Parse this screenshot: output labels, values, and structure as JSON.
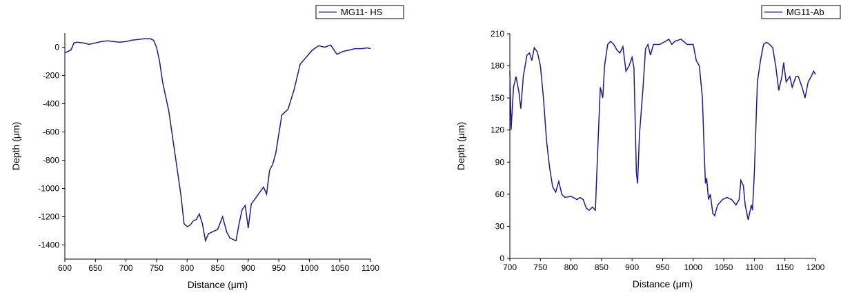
{
  "chart_data": [
    {
      "type": "line",
      "xlabel": "Distance (μm)",
      "ylabel": "Depth (μm)",
      "xlim": [
        600,
        1100
      ],
      "xticks": [
        600,
        650,
        700,
        750,
        800,
        850,
        900,
        950,
        1000,
        1050,
        1100
      ],
      "ylim": [
        -1500,
        100
      ],
      "yticks": [
        0,
        -200,
        -400,
        -600,
        -800,
        -1000,
        -1200,
        -1400
      ],
      "legend": "top-right",
      "series": [
        {
          "name": "MG11- HS",
          "color": "#1a1a8c",
          "x": [
            600,
            610,
            615,
            620,
            630,
            640,
            650,
            660,
            670,
            680,
            690,
            700,
            710,
            720,
            730,
            740,
            745,
            750,
            755,
            760,
            770,
            780,
            790,
            795,
            800,
            805,
            810,
            815,
            820,
            825,
            830,
            835,
            840,
            850,
            858,
            865,
            870,
            880,
            885,
            890,
            895,
            900,
            905,
            915,
            925,
            930,
            935,
            940,
            945,
            955,
            965,
            975,
            985,
            995,
            1005,
            1015,
            1025,
            1035,
            1045,
            1055,
            1065,
            1075,
            1085,
            1095,
            1100
          ],
          "values": [
            -40,
            -20,
            30,
            35,
            30,
            20,
            30,
            40,
            45,
            40,
            35,
            40,
            50,
            55,
            60,
            60,
            50,
            0,
            -100,
            -250,
            -450,
            -750,
            -1050,
            -1250,
            -1270,
            -1260,
            -1230,
            -1220,
            -1180,
            -1250,
            -1370,
            -1320,
            -1310,
            -1290,
            -1200,
            -1310,
            -1350,
            -1370,
            -1250,
            -1150,
            -1120,
            -1280,
            -1110,
            -1050,
            -990,
            -1040,
            -870,
            -830,
            -750,
            -480,
            -440,
            -300,
            -120,
            -70,
            -20,
            10,
            0,
            15,
            -50,
            -30,
            -20,
            -10,
            -10,
            -5,
            -10
          ]
        }
      ]
    },
    {
      "type": "line",
      "xlabel": "Distance (μm)",
      "ylabel": "Depth (μm)",
      "xlim": [
        700,
        1200
      ],
      "xticks": [
        700,
        750,
        800,
        850,
        900,
        950,
        1000,
        1050,
        1100,
        1150,
        1200
      ],
      "ylim": [
        0,
        210
      ],
      "yticks": [
        0,
        30,
        60,
        90,
        120,
        150,
        180,
        210
      ],
      "legend": "top-right",
      "series": [
        {
          "name": "MG11-Ab",
          "color": "#1a1a8c",
          "x": [
            700,
            702,
            706,
            710,
            715,
            718,
            722,
            728,
            732,
            736,
            740,
            745,
            750,
            755,
            760,
            765,
            770,
            775,
            780,
            785,
            790,
            800,
            810,
            815,
            820,
            825,
            830,
            835,
            840,
            843,
            848,
            852,
            855,
            860,
            865,
            870,
            875,
            880,
            885,
            890,
            895,
            900,
            903,
            907,
            909,
            912,
            918,
            922,
            926,
            930,
            935,
            945,
            955,
            960,
            965,
            970,
            980,
            990,
            1000,
            1005,
            1010,
            1015,
            1018,
            1020,
            1022,
            1025,
            1028,
            1032,
            1035,
            1040,
            1048,
            1055,
            1063,
            1070,
            1075,
            1078,
            1082,
            1085,
            1090,
            1095,
            1097,
            1100,
            1105,
            1110,
            1115,
            1120,
            1125,
            1130,
            1135,
            1140,
            1145,
            1148,
            1152,
            1158,
            1162,
            1168,
            1172,
            1178,
            1183,
            1188,
            1193,
            1197,
            1200
          ],
          "values": [
            175,
            120,
            160,
            170,
            155,
            140,
            170,
            190,
            192,
            185,
            197,
            193,
            180,
            150,
            110,
            85,
            67,
            62,
            72,
            60,
            57,
            58,
            55,
            57,
            55,
            47,
            45,
            48,
            45,
            90,
            160,
            150,
            180,
            200,
            203,
            200,
            195,
            192,
            198,
            175,
            180,
            188,
            178,
            80,
            70,
            115,
            160,
            196,
            200,
            190,
            200,
            200,
            203,
            205,
            200,
            203,
            205,
            200,
            200,
            185,
            180,
            150,
            100,
            70,
            75,
            55,
            60,
            42,
            40,
            50,
            55,
            57,
            55,
            50,
            55,
            73,
            68,
            50,
            36,
            50,
            45,
            80,
            165,
            185,
            200,
            202,
            200,
            197,
            180,
            157,
            170,
            183,
            165,
            170,
            160,
            170,
            170,
            160,
            150,
            165,
            170,
            175,
            172
          ]
        }
      ]
    }
  ]
}
